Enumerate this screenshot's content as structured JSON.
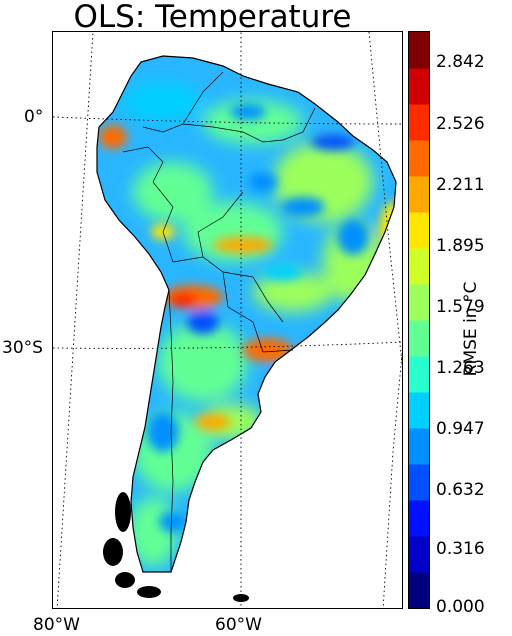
{
  "title": "OLS: Temperature",
  "colorbar": {
    "label": "RMSE in °C",
    "ticks": [
      "2.842",
      "2.526",
      "2.211",
      "1.895",
      "1.579",
      "1.263",
      "0.947",
      "0.632",
      "0.316",
      "0.000"
    ],
    "range": [
      0.0,
      3.0
    ],
    "colors": [
      "#00007f",
      "#0000c8",
      "#0010ff",
      "#0050ff",
      "#0090ff",
      "#00d0ff",
      "#29ffce",
      "#62ff95",
      "#9cff5b",
      "#ceff29",
      "#ffe600",
      "#ffa800",
      "#ff6a00",
      "#ff2c00",
      "#d10000",
      "#7f0000"
    ]
  },
  "axes": {
    "lat_labels": [
      "0°",
      "30°S"
    ],
    "lon_labels": [
      "80°W",
      "60°W"
    ]
  },
  "map": {
    "region": "South America",
    "land_color": "#29b6ff",
    "hotspots": [
      {
        "name": "northwest",
        "value": 2.3
      },
      {
        "name": "amazon-east",
        "value": 0.4
      },
      {
        "name": "central-andes",
        "value": 2.4
      },
      {
        "name": "central-plains",
        "value": 2.0
      },
      {
        "name": "southeast",
        "value": 2.5
      },
      {
        "name": "patagonia",
        "value": 2.2
      },
      {
        "name": "brazil-east",
        "value": 1.9
      }
    ]
  }
}
